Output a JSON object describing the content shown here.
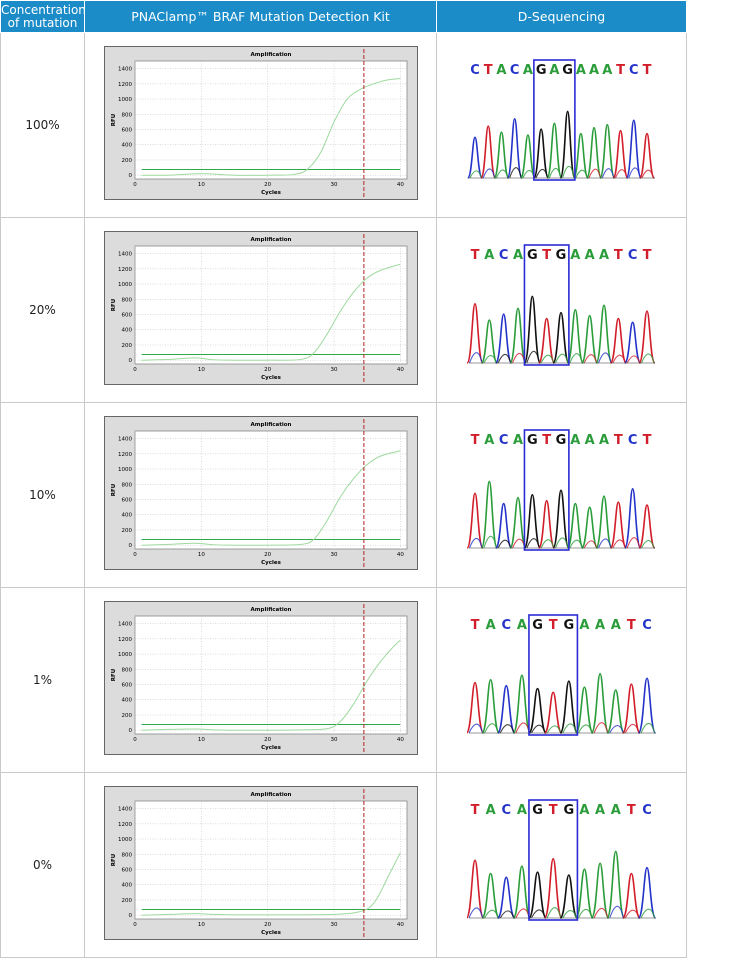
{
  "header": {
    "col1": "Concentration of mutation",
    "col2": "PNAClamp™ BRAF Mutation Detection Kit",
    "col3": "D-Sequencing"
  },
  "chart_common": {
    "title": "Amplification",
    "xlabel": "Cycles",
    "ylabel": "RFU",
    "xticks": [
      0,
      10,
      20,
      30,
      40
    ],
    "yticks": [
      0,
      200,
      400,
      600,
      800,
      1000,
      1200,
      1400
    ],
    "xlim": [
      0,
      41
    ],
    "ylim": [
      -50,
      1500
    ],
    "threshold_rfu": 75,
    "cutoff_cycle": 34.5,
    "curve_color": "#9ed99e",
    "threshold_color": "#2ea84a",
    "cutoff_color": "#b22222"
  },
  "rows": [
    {
      "concentration": "100%",
      "sequence": [
        "C",
        "T",
        "A",
        "C",
        "A",
        "G",
        "A",
        "G",
        "A",
        "A",
        "A",
        "T",
        "C",
        "T"
      ],
      "box": [
        5,
        7
      ]
    },
    {
      "concentration": "20%",
      "sequence": [
        "T",
        "A",
        "C",
        "A",
        "G",
        "T",
        "G",
        "A",
        "A",
        "A",
        "T",
        "C",
        "T"
      ],
      "box": [
        4,
        6
      ]
    },
    {
      "concentration": "10%",
      "sequence": [
        "T",
        "A",
        "C",
        "A",
        "G",
        "T",
        "G",
        "A",
        "A",
        "A",
        "T",
        "C",
        "T"
      ],
      "box": [
        4,
        6
      ]
    },
    {
      "concentration": "1%",
      "sequence": [
        "T",
        "A",
        "C",
        "A",
        "G",
        "T",
        "G",
        "A",
        "A",
        "A",
        "T",
        "C"
      ],
      "box": [
        4,
        6
      ]
    },
    {
      "concentration": "0%",
      "sequence": [
        "T",
        "A",
        "C",
        "A",
        "G",
        "T",
        "G",
        "A",
        "A",
        "A",
        "T",
        "C"
      ],
      "box": [
        4,
        6
      ]
    }
  ],
  "chart_data": [
    {
      "type": "line",
      "title": "Amplification",
      "xlabel": "Cycles",
      "ylabel": "RFU",
      "xlim": [
        0,
        41
      ],
      "ylim": [
        -50,
        1500
      ],
      "series": [
        {
          "x": [
            1,
            5,
            10,
            15,
            20,
            24,
            26,
            28,
            30,
            32,
            34,
            36,
            38,
            40
          ],
          "values": [
            0,
            0,
            20,
            0,
            0,
            10,
            80,
            300,
            700,
            1000,
            1130,
            1200,
            1250,
            1270
          ]
        }
      ]
    },
    {
      "type": "line",
      "title": "Amplification",
      "xlabel": "Cycles",
      "ylabel": "RFU",
      "xlim": [
        0,
        41
      ],
      "ylim": [
        -50,
        1500
      ],
      "series": [
        {
          "x": [
            1,
            5,
            9,
            12,
            15,
            20,
            25,
            27,
            29,
            31,
            33,
            35,
            37,
            40
          ],
          "values": [
            0,
            10,
            30,
            5,
            0,
            0,
            10,
            100,
            350,
            650,
            900,
            1080,
            1180,
            1260
          ]
        }
      ]
    },
    {
      "type": "line",
      "title": "Amplification",
      "xlabel": "Cycles",
      "ylabel": "RFU",
      "xlim": [
        0,
        41
      ],
      "ylim": [
        -50,
        1500
      ],
      "series": [
        {
          "x": [
            1,
            5,
            9,
            12,
            15,
            20,
            25,
            27,
            29,
            31,
            33,
            35,
            37,
            40
          ],
          "values": [
            0,
            10,
            25,
            5,
            0,
            0,
            10,
            80,
            330,
            640,
            880,
            1060,
            1170,
            1240
          ]
        }
      ]
    },
    {
      "type": "line",
      "title": "Amplification",
      "xlabel": "Cycles",
      "ylabel": "RFU",
      "xlim": [
        0,
        41
      ],
      "ylim": [
        -50,
        1500
      ],
      "series": [
        {
          "x": [
            1,
            5,
            9,
            12,
            15,
            20,
            25,
            29,
            31,
            33,
            35,
            37,
            39,
            40
          ],
          "values": [
            0,
            10,
            15,
            5,
            0,
            0,
            5,
            20,
            120,
            350,
            650,
            900,
            1100,
            1180
          ]
        }
      ]
    },
    {
      "type": "line",
      "title": "Amplification",
      "xlabel": "Cycles",
      "ylabel": "RFU",
      "xlim": [
        0,
        41
      ],
      "ylim": [
        -50,
        1500
      ],
      "series": [
        {
          "x": [
            1,
            5,
            9,
            12,
            15,
            20,
            25,
            30,
            33,
            35,
            36,
            37,
            38,
            39,
            40
          ],
          "values": [
            0,
            10,
            20,
            10,
            5,
            5,
            5,
            10,
            30,
            80,
            160,
            300,
            480,
            650,
            820
          ]
        }
      ]
    }
  ]
}
